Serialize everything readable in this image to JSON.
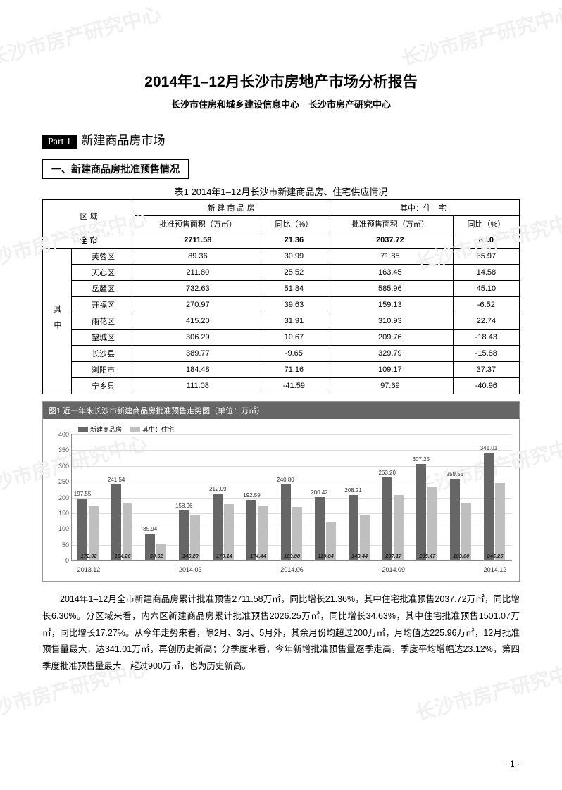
{
  "watermark_text": "长沙市房产研究中心",
  "title": "2014年1–12月长沙市房地产市场分析报告",
  "subtitle": "长沙市住房和城乡建设信息中心　长沙市房产研究中心",
  "part": {
    "label": "Part 1",
    "text": "新建商品房市场"
  },
  "section1": "一、新建商品房批准预售情况",
  "table1": {
    "title": "表1  2014年1–12月长沙市新建商品房、住宅供应情况",
    "header_region": "区 域",
    "group1": "新 建 商 品 房",
    "group2": "其中：住　宅",
    "col1": "批准预售面积（万㎡）",
    "col2": "同比（%）",
    "col3": "批准预售面积（万㎡）",
    "col4": "同比（%）",
    "side_label": "其中",
    "total_row": {
      "name": "全 市",
      "v1": "2711.58",
      "v2": "21.36",
      "v3": "2037.72",
      "v4": "6.30"
    },
    "rows": [
      {
        "name": "芙蓉区",
        "v1": "89.36",
        "v2": "30.99",
        "v3": "71.85",
        "v4": "35.97"
      },
      {
        "name": "天心区",
        "v1": "211.80",
        "v2": "25.52",
        "v3": "163.45",
        "v4": "14.58"
      },
      {
        "name": "岳麓区",
        "v1": "732.63",
        "v2": "51.84",
        "v3": "585.96",
        "v4": "45.10"
      },
      {
        "name": "开福区",
        "v1": "270.97",
        "v2": "39.63",
        "v3": "159.13",
        "v4": "-6.52"
      },
      {
        "name": "雨花区",
        "v1": "415.20",
        "v2": "31.91",
        "v3": "310.93",
        "v4": "22.74"
      },
      {
        "name": "望城区",
        "v1": "306.29",
        "v2": "10.67",
        "v3": "209.76",
        "v4": "-18.43"
      },
      {
        "name": "长沙县",
        "v1": "389.77",
        "v2": "-9.65",
        "v3": "329.79",
        "v4": "-15.88"
      },
      {
        "name": "浏阳市",
        "v1": "184.48",
        "v2": "71.16",
        "v3": "109.17",
        "v4": "37.37"
      },
      {
        "name": "宁乡县",
        "v1": "111.08",
        "v2": "-41.59",
        "v3": "97.69",
        "v4": "-40.96"
      }
    ]
  },
  "chart1": {
    "title": "图1  近一年来长沙市新建商品房批准预售走势图（单位：万㎡）",
    "type": "bar",
    "legend": {
      "s1": "新建商品房",
      "s2": "其中：住宅"
    },
    "colors": {
      "s1": "#666666",
      "s2": "#bfbfbf",
      "grid": "#dddddd",
      "axis": "#888888",
      "bg": "#ffffff"
    },
    "ylim": [
      0,
      400
    ],
    "ytick_step": 50,
    "yticks": [
      "0",
      "50",
      "100",
      "150",
      "200",
      "250",
      "300",
      "350",
      "400"
    ],
    "label_fontsize": 9,
    "categories": [
      "2013.12",
      "",
      "",
      "2014.03",
      "",
      "",
      "2014.06",
      "",
      "",
      "2014.09",
      "",
      "",
      "2014.12"
    ],
    "s1_values": [
      197.55,
      241.54,
      85.94,
      158.96,
      212.09,
      192.59,
      240.8,
      200.42,
      208.21,
      263.2,
      307.25,
      259.55,
      341.01
    ],
    "s2_values": [
      172.92,
      184.26,
      50.62,
      145.2,
      179.14,
      174.44,
      169.88,
      119.84,
      143.44,
      207.17,
      235.47,
      183.0,
      245.25
    ],
    "s1_top_labels": [
      "197.55",
      "241.54",
      "85.94",
      "158.96",
      "212.09",
      "192.59",
      "240.80",
      "200.42",
      "208.21",
      "263.20",
      "307.25",
      "259.55",
      "341.01"
    ],
    "s2_bot_labels": [
      "172.92",
      "184.26",
      "50.62",
      "145.20",
      "179.14",
      "174.44",
      "169.88",
      "119.84",
      "143.44",
      "207.17",
      "235.47",
      "183.00",
      "245.25"
    ]
  },
  "body_text": "2014年1–12月全市新建商品房累计批准预售2711.58万㎡，同比增长21.36%，其中住宅批准预售2037.72万㎡，同比增长6.30%。分区域来看，内六区新建商品房累计批准预售2026.25万㎡，同比增长34.63%，其中住宅批准预售1501.07万㎡，同比增长17.27%。从今年走势来看，除2月、3月、5月外，其余月份均超过200万㎡，月均值达225.96万㎡，12月批准预售量最大，达341.01万㎡，再创历史新高；分季度来看，今年新增批准预售量逐季走高，季度平均增幅达23.12%，第四季度批准预售量最大，超过900万㎡，也为历史新高。",
  "page_num": "·  1  ·"
}
